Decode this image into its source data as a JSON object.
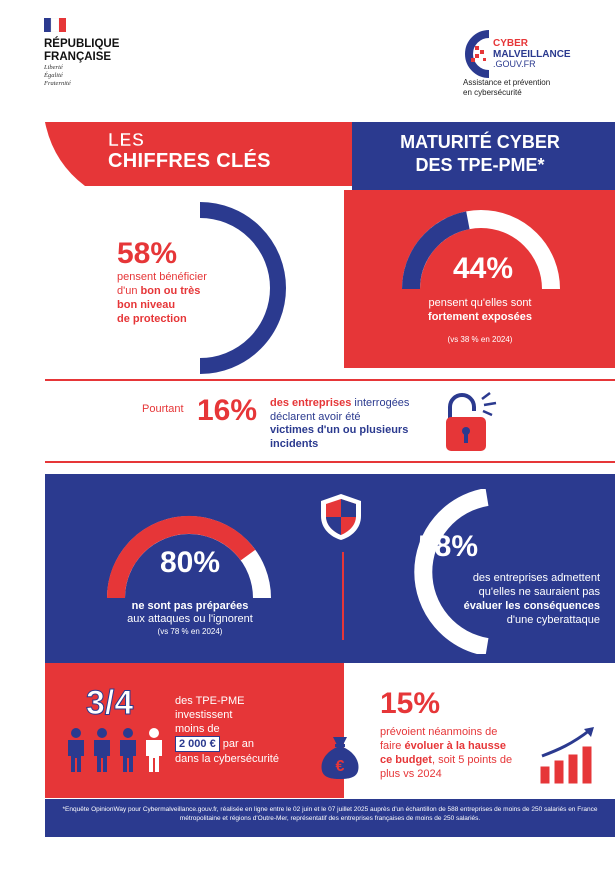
{
  "header": {
    "republic_line1": "RÉPUBLIQUE",
    "republic_line2": "FRANÇAISE",
    "motto_1": "Liberté",
    "motto_2": "Égalité",
    "motto_3": "Fraternité",
    "logo_line1": "CYBER",
    "logo_line2": "MALVEILLANCE",
    "logo_line3": ".GOUV.FR",
    "tagline_1": "Assistance et prévention",
    "tagline_2": "en cybersécurité"
  },
  "banner": {
    "les": "LES",
    "chiffres": "CHIFFRES CLÉS",
    "maturite_1": "MATURITÉ CYBER",
    "maturite_2": "DES TPE-PME*"
  },
  "stat_1": {
    "value": "58%",
    "text_1": "pensent bénéficier",
    "text_2": "d'un",
    "text_bold_1": "bon ou très",
    "text_bold_2": "bon niveau",
    "text_bold_3": "de protection",
    "fraction": 0.58
  },
  "stat_2": {
    "value": "44%",
    "text_1": "pensent qu'elles sont",
    "text_bold": "fortement exposées",
    "note": "(vs 38 % en 2024)",
    "fraction": 0.44
  },
  "stat_3": {
    "pourtant": "Pourtant",
    "value": "16%",
    "text_bold_1": "des entreprises",
    "text_1": "interrogées",
    "text_2": "déclarent avoir été",
    "text_bold_2": "victimes d'un ou plusieurs",
    "text_bold_3": "incidents"
  },
  "stat_4": {
    "value": "80%",
    "text_bold": "ne sont pas préparées",
    "text_1": "aux attaques ou l'ignorent",
    "note": "(vs 78 % en 2024)",
    "fraction": 0.8
  },
  "stat_5": {
    "value": "58%",
    "text_1": "des entreprises admettent",
    "text_2": "qu'elles ne sauraient pas",
    "text_bold": "évaluer les conséquences",
    "text_3": "d'une cyberattaque",
    "fraction": 0.58
  },
  "stat_6": {
    "value": "3/4",
    "text_1": "des TPE-PME",
    "text_2": "investissent",
    "text_3": "moins de",
    "amount": "2 000 €",
    "text_4": "par an",
    "text_5": "dans la cybersécurité"
  },
  "stat_7": {
    "value": "15%",
    "text_1": "prévoient néanmoins de",
    "text_2": "faire",
    "text_bold_1": "évoluer à la hausse",
    "text_bold_2": "ce budget",
    "text_3": ", soit 5 points de",
    "text_4": "plus vs 2024"
  },
  "footer": {
    "text": "*Enquête OpinionWay pour Cybermalveillance.gouv.fr, réalisée en ligne entre le 02 juin et le 07 juillet 2025 auprès d'un échantillon de 588 entreprises de moins de 250 salariés en France métropolitaine et régions d'Outre-Mer, représentatif des entreprises françaises de moins de 250 salariés."
  },
  "colors": {
    "navy": "#2b3a8f",
    "red": "#e63638",
    "light_grey": "#ffffff"
  }
}
